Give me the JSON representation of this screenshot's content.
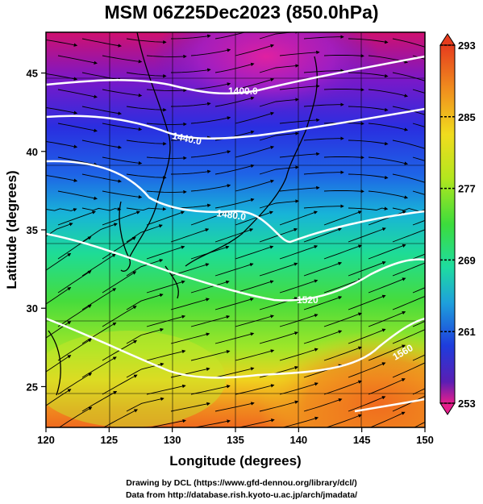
{
  "title": "MSM 06Z25Dec2023 (850.0hPa)",
  "axes": {
    "xlabel": "Longitude (degrees)",
    "ylabel": "Latitude  (degrees)",
    "xticks": [
      "120",
      "125",
      "130",
      "135",
      "140",
      "145",
      "150"
    ],
    "yticks": [
      "45",
      "40",
      "35",
      "30",
      "25"
    ],
    "xrange": [
      120,
      150
    ],
    "yrange": [
      22.4,
      47.6
    ]
  },
  "colorbar": {
    "labels": [
      "293",
      "285",
      "277",
      "269",
      "261",
      "253"
    ],
    "range": [
      253,
      293
    ],
    "colors": [
      "#e61e8c",
      "#5a1eb4",
      "#1e3cdc",
      "#1ea0dc",
      "#1edca0",
      "#3cdc3c",
      "#b4e61e",
      "#f0dc1e",
      "#f08c1e",
      "#e63c1e"
    ]
  },
  "contours": [
    {
      "label": "1400.0"
    },
    {
      "label": "1440.0"
    },
    {
      "label": "1480.0"
    },
    {
      "label": "1520"
    },
    {
      "label": "1560"
    }
  ],
  "footer": {
    "line1": "Drawing by DCL (https://www.gfd-dennou.org/library/dcl/)",
    "line2": "Data from http://database.rish.kyoto-u.ac.jp/arch/jmadata/"
  }
}
